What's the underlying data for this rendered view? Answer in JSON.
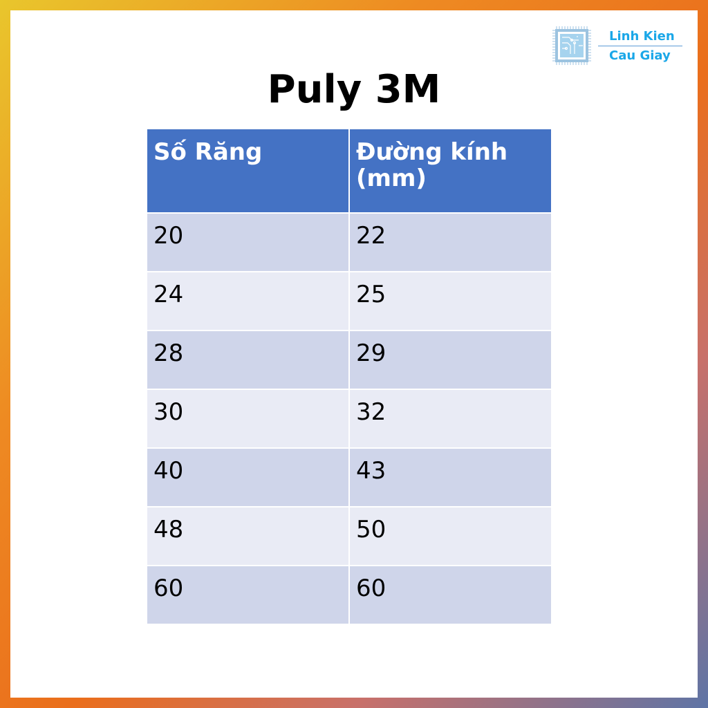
{
  "title": "Puly 3M",
  "logo": {
    "line1": "Linh Kien",
    "line2": "Cau Giay"
  },
  "table": {
    "headers": [
      "Số Răng",
      "Đường kính (mm)"
    ],
    "rows": [
      [
        "20",
        "22"
      ],
      [
        "24",
        "25"
      ],
      [
        "28",
        "29"
      ],
      [
        "30",
        "32"
      ],
      [
        "40",
        "43"
      ],
      [
        "48",
        "50"
      ],
      [
        "60",
        "60"
      ]
    ]
  },
  "colors": {
    "header": "#4472c4",
    "row_odd": "#cfd5ea",
    "row_even": "#e9ebf5",
    "brand": "#1aa7e8"
  }
}
